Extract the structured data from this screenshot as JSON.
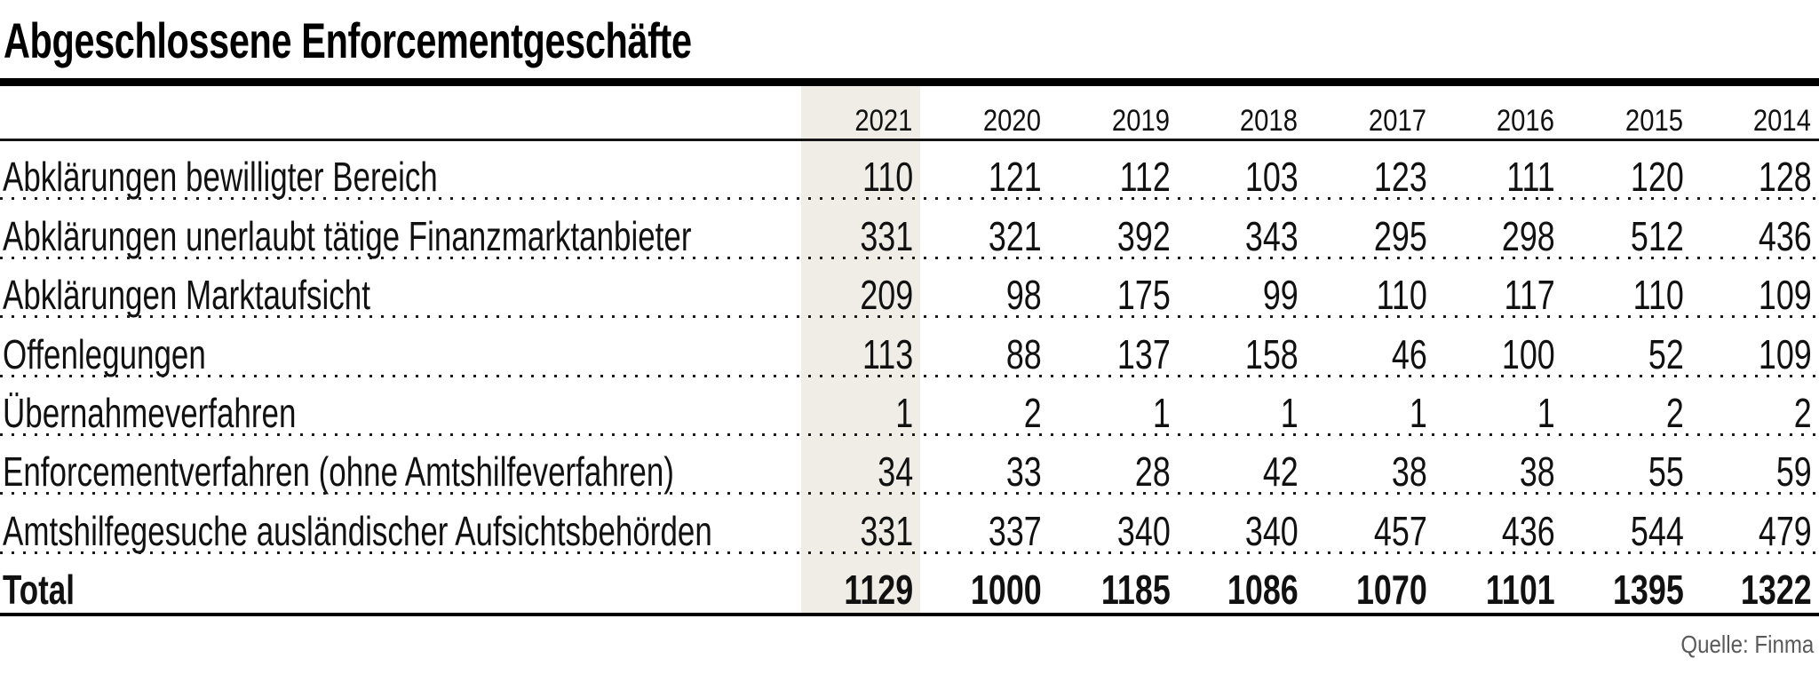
{
  "title": "Abgeschlossene Enforcementgeschäfte",
  "source": "Quelle: Finma",
  "highlight": {
    "column": "2021",
    "color": "#efede6"
  },
  "chart_data": {
    "type": "table",
    "title": "Abgeschlossene Enforcementgeschäfte",
    "columns": [
      "2021",
      "2020",
      "2019",
      "2018",
      "2017",
      "2016",
      "2015",
      "2014"
    ],
    "rows": [
      {
        "label": "Abklärungen bewilligter Bereich",
        "values": [
          110,
          121,
          112,
          103,
          123,
          111,
          120,
          128
        ]
      },
      {
        "label": "Abklärungen unerlaubt tätige Finanzmarktanbieter",
        "values": [
          331,
          321,
          392,
          343,
          295,
          298,
          512,
          436
        ]
      },
      {
        "label": "Abklärungen Marktaufsicht",
        "values": [
          209,
          98,
          175,
          99,
          110,
          117,
          110,
          109
        ]
      },
      {
        "label": "Offenlegungen",
        "values": [
          113,
          88,
          137,
          158,
          46,
          100,
          52,
          109
        ]
      },
      {
        "label": "Übernahmeverfahren",
        "values": [
          1,
          2,
          1,
          1,
          1,
          1,
          2,
          2
        ]
      },
      {
        "label": "Enforcementverfahren (ohne Amtshilfeverfahren)",
        "values": [
          34,
          33,
          28,
          42,
          38,
          38,
          55,
          59
        ]
      },
      {
        "label": "Amtshilfegesuche ausländischer Aufsichtsbehörden",
        "values": [
          331,
          337,
          340,
          340,
          457,
          436,
          544,
          479
        ]
      },
      {
        "label": "Total",
        "values": [
          1129,
          1000,
          1185,
          1086,
          1070,
          1101,
          1395,
          1322
        ],
        "bold": true
      }
    ],
    "legend_position": "none",
    "grid": "dotted-row-separators",
    "source": "Quelle: Finma"
  }
}
